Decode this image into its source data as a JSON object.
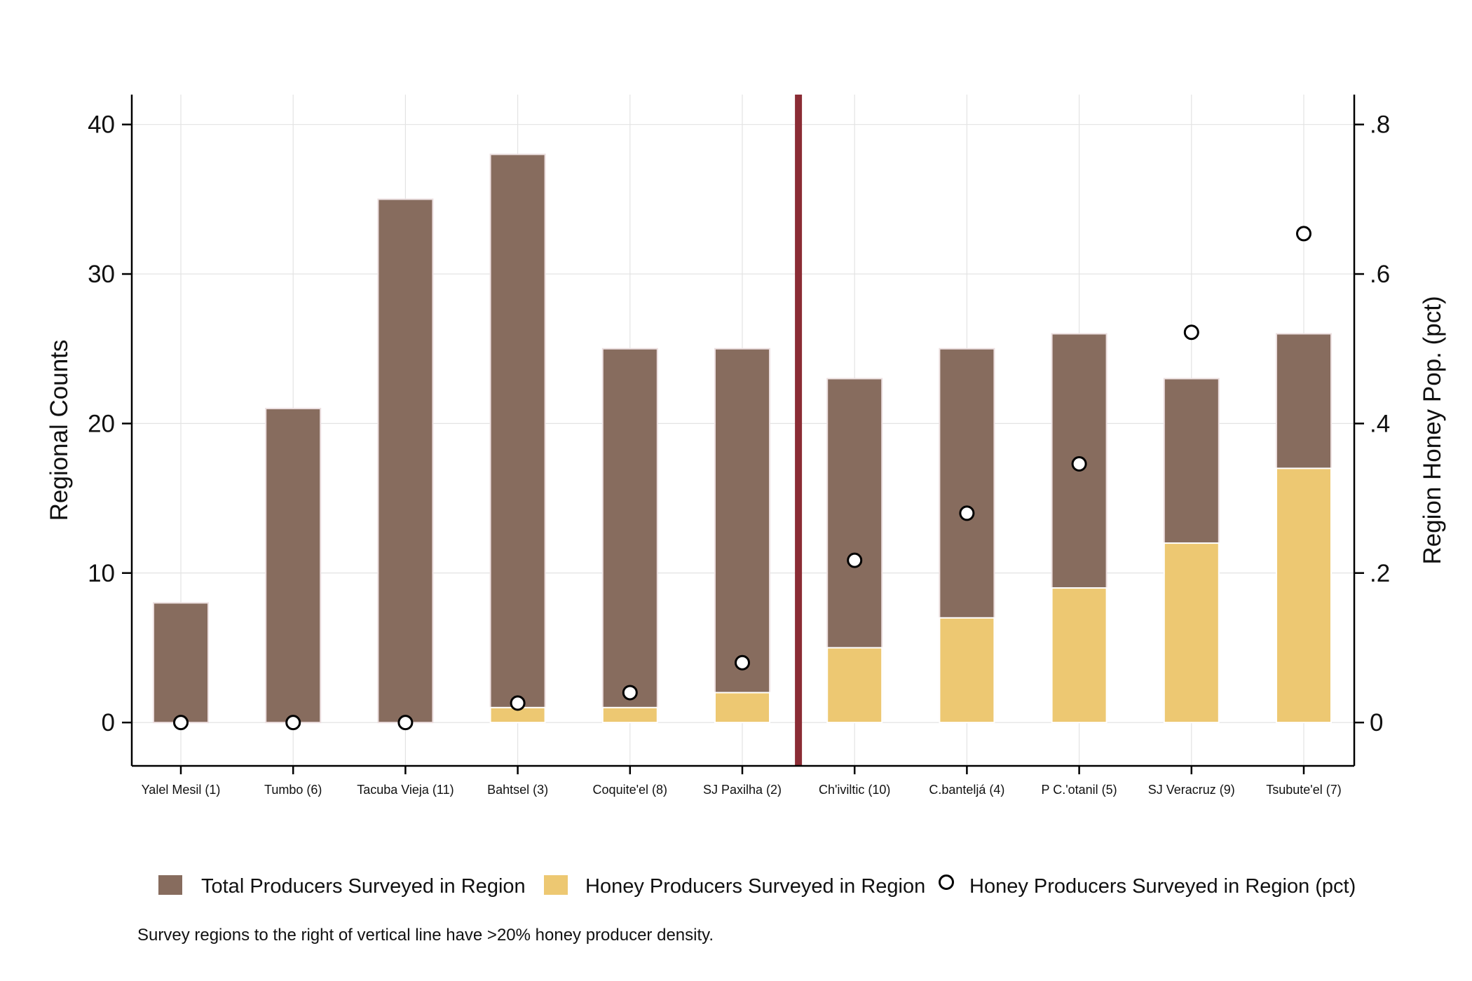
{
  "chart_data": {
    "type": "bar",
    "categories": [
      "Yalel Mesil (1)",
      "Tumbo (6)",
      "Tacuba Vieja (11)",
      "Bahtsel (3)",
      "Coquite'el (8)",
      "SJ Paxilha (2)",
      "Ch'iviltic (10)",
      "C.banteljá (4)",
      "P C.'otanil (5)",
      "SJ Veracruz (9)",
      "Tsubute'el (7)"
    ],
    "series": [
      {
        "name": "Total Producers Surveyed in Region",
        "type": "bar",
        "axis": "left",
        "color": "#876c5e",
        "values": [
          8,
          21,
          35,
          38,
          25,
          25,
          23,
          25,
          26,
          23,
          26
        ]
      },
      {
        "name": "Honey Producers Surveyed in Region",
        "type": "bar",
        "axis": "left",
        "color": "#edc872",
        "values": [
          0,
          0,
          0,
          1,
          1,
          2,
          5,
          7,
          9,
          12,
          17
        ]
      },
      {
        "name": "Honey Producers Surveyed in Region (pct)",
        "type": "scatter",
        "axis": "right",
        "marker": "hollow-circle",
        "values": [
          0,
          0,
          0,
          0.026,
          0.04,
          0.08,
          0.217,
          0.28,
          0.346,
          0.522,
          0.654
        ]
      }
    ],
    "ylabel": "Regional Counts",
    "ylim": [
      -2.9,
      42
    ],
    "yticks": [
      0,
      10,
      20,
      30,
      40
    ],
    "ytick_labels": [
      "0",
      "10",
      "20",
      "30",
      "40"
    ],
    "y2label": "Region Honey Pop. (pct)",
    "y2lim": [
      -0.058,
      0.84
    ],
    "y2ticks": [
      0,
      0.2,
      0.4,
      0.6,
      0.8
    ],
    "y2tick_labels": [
      "0",
      ".2",
      ".4",
      ".6",
      ".8"
    ],
    "divider_after_category_index": 5,
    "divider_color": "#8b2c35",
    "grid": true,
    "legend_position": "bottom",
    "note": "Survey regions to the right of vertical line have >20% honey producer density."
  }
}
